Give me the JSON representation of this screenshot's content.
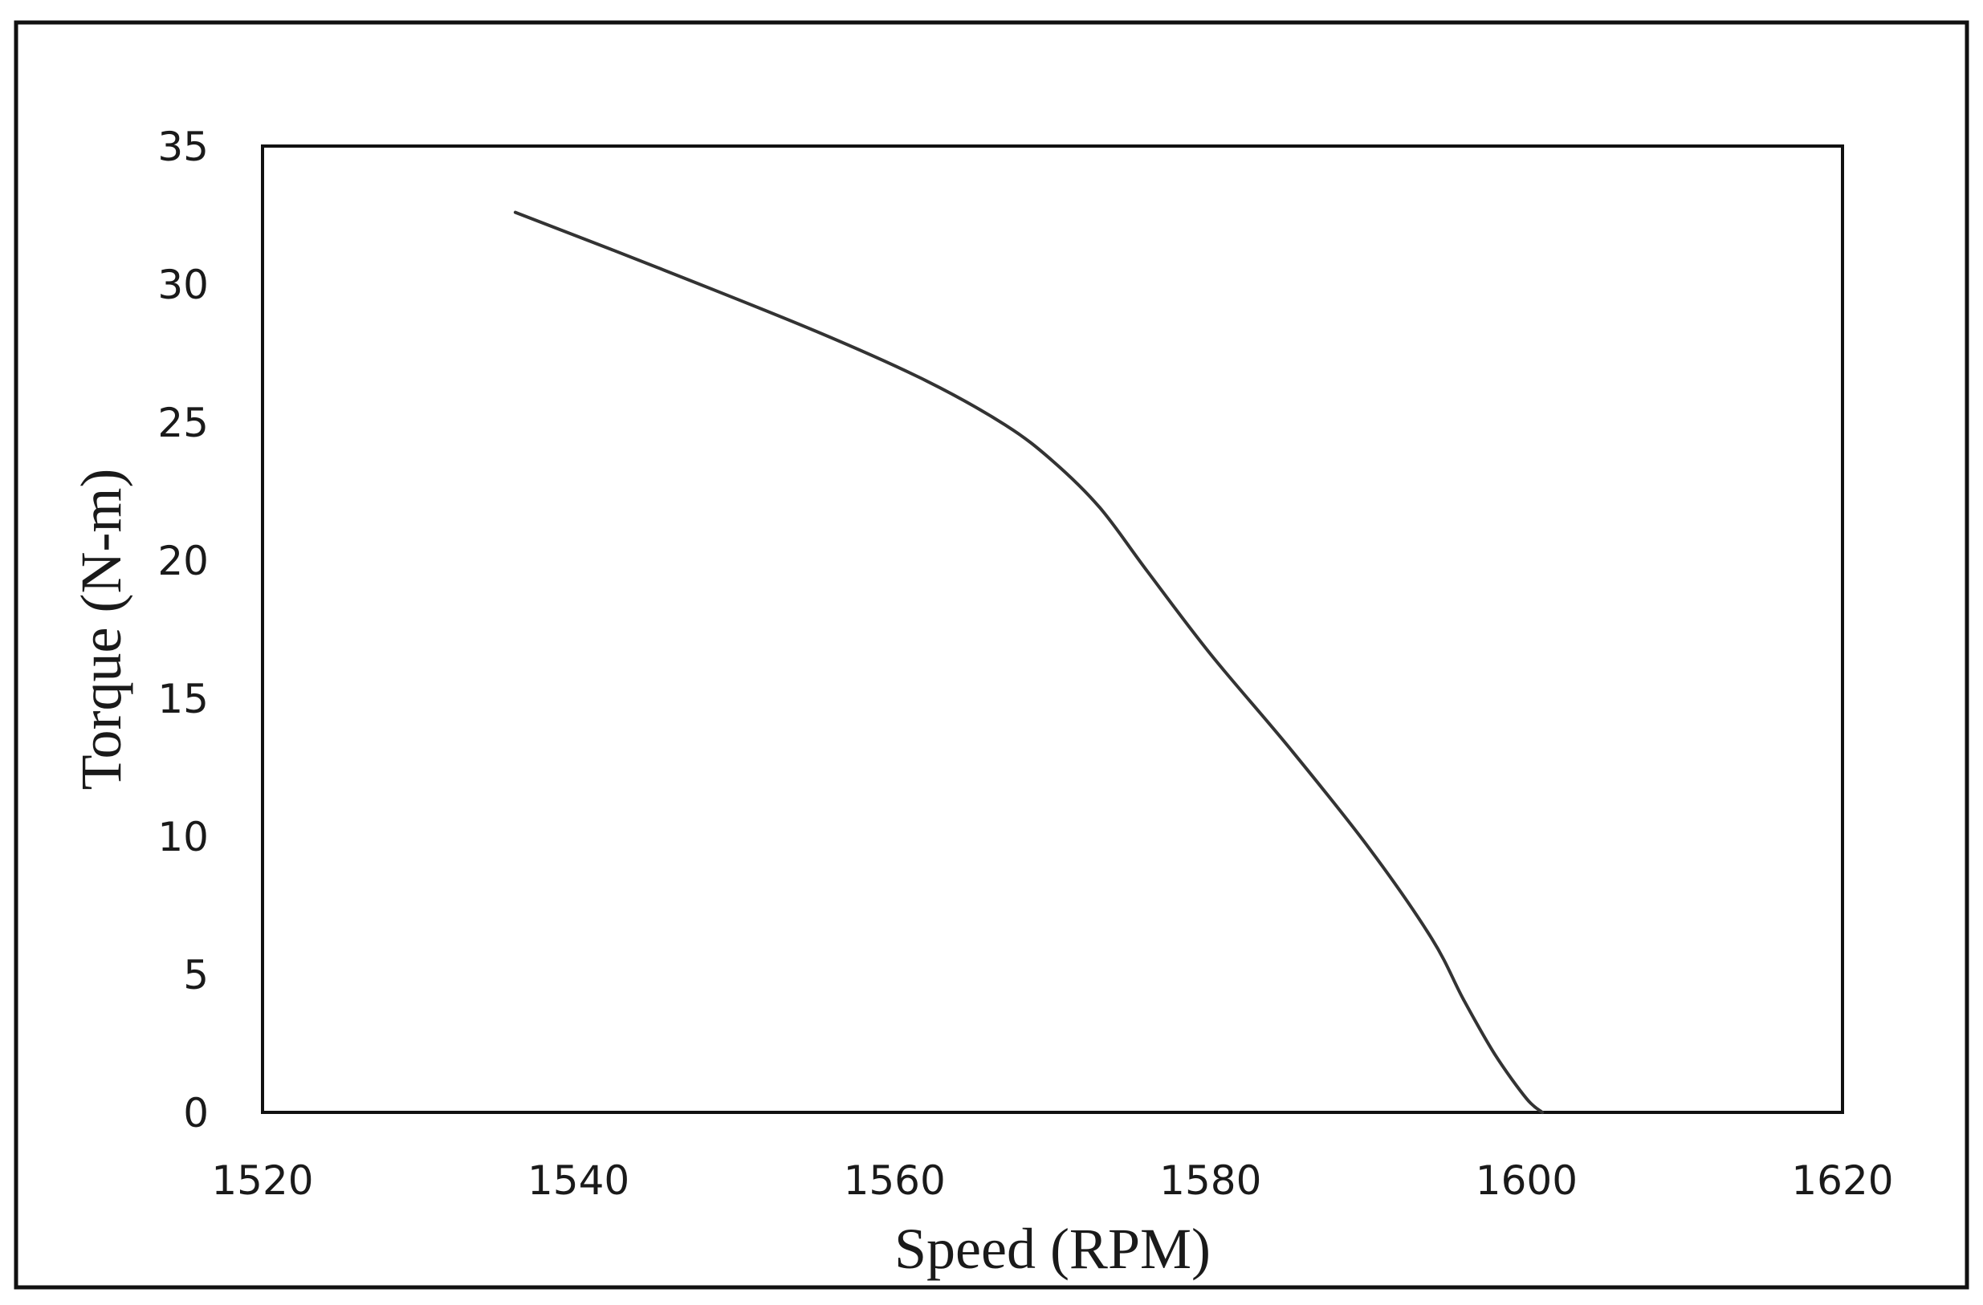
{
  "chart_data": {
    "type": "line",
    "title": "",
    "xlabel": "Speed (RPM)",
    "ylabel": "Torque (N-m)",
    "xlim": [
      1520,
      1620
    ],
    "ylim": [
      0,
      35
    ],
    "x_ticks": [
      1520,
      1540,
      1560,
      1580,
      1600,
      1620
    ],
    "y_ticks": [
      0,
      5,
      10,
      15,
      20,
      25,
      30,
      35
    ],
    "grid": false,
    "legend": "none",
    "line_color": "#333333",
    "series": [
      {
        "x": [
          1536,
          1545,
          1555,
          1562,
          1567,
          1570,
          1573,
          1576,
          1580,
          1585,
          1590,
          1594,
          1596,
          1598,
          1600,
          1601
        ],
        "y": [
          32.6,
          30.6,
          28.3,
          26.5,
          24.9,
          23.6,
          21.9,
          19.6,
          16.6,
          13.2,
          9.6,
          6.3,
          4.1,
          2.1,
          0.5,
          0
        ]
      }
    ]
  }
}
